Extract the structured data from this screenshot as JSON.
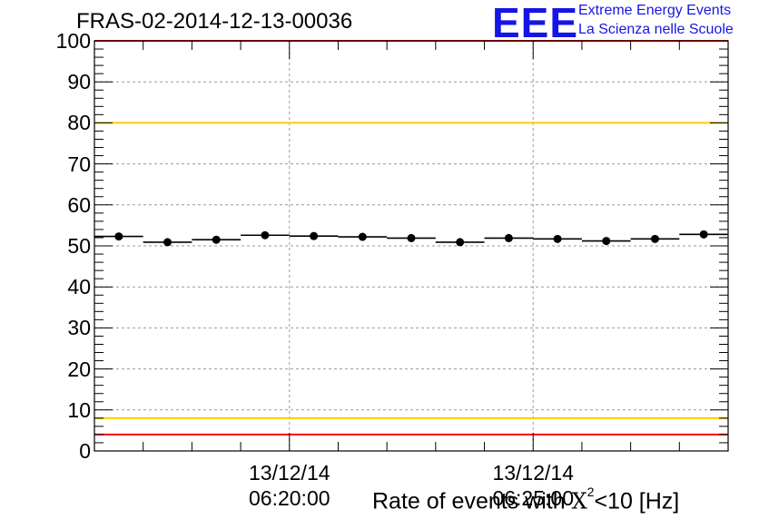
{
  "title": "FRAS-02-2014-12-13-00036",
  "logo": {
    "mark": "EEE",
    "line1": "Extreme Energy Events",
    "line2": "La Scienza nelle Scuole"
  },
  "chart_data": {
    "type": "scatter",
    "title": "FRAS-02-2014-12-13-00036",
    "xlabel": "Rate of events with X²<10 [Hz]",
    "ylabel": "",
    "ylim": [
      0,
      100
    ],
    "yticks": [
      "0",
      "10",
      "20",
      "30",
      "40",
      "50",
      "60",
      "70",
      "80",
      "90",
      "100"
    ],
    "xlim": [
      "06:16:00",
      "06:29:00"
    ],
    "xticks": [
      {
        "time": "06:20:00",
        "date_label": "13/12/14",
        "time_label": "06:20:00"
      },
      {
        "time": "06:25:00",
        "date_label": "13/12/14",
        "time_label": "06:25:00"
      }
    ],
    "grid": true,
    "bin_width_seconds": 60,
    "series": [
      {
        "x": [
          "06:16:30",
          "06:17:30",
          "06:18:30",
          "06:19:30",
          "06:20:30",
          "06:21:30",
          "06:22:30",
          "06:23:30",
          "06:24:30",
          "06:25:30",
          "06:26:30",
          "06:27:30",
          "06:28:30"
        ],
        "values": [
          52.3,
          50.9,
          51.5,
          52.6,
          52.4,
          52.2,
          51.9,
          50.9,
          51.9,
          51.7,
          51.2,
          51.7,
          52.8
        ]
      }
    ],
    "reference_lines": [
      {
        "y": 100,
        "color": "#ff0000"
      },
      {
        "y": 80,
        "color": "#ffcc00"
      },
      {
        "y": 8,
        "color": "#ffcc00"
      },
      {
        "y": 4,
        "color": "#ff0000"
      }
    ]
  }
}
